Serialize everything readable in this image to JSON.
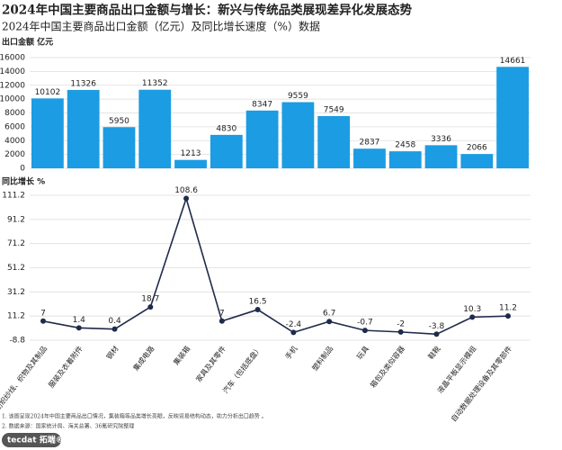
{
  "chart_data": [
    {
      "type": "bar",
      "title": "2024年中国主要商品出口金额与增长：新兴与传统品类展现差异化发展态势",
      "subtitle": "2024年中国主要商品出口金额（亿元）及同比增长速度（%）数据",
      "y_label": "出口金额  亿元",
      "color": "#1c9ce2",
      "values": [
        10102,
        11326,
        5950,
        11352,
        1213,
        4830,
        8347,
        9559,
        7549,
        2837,
        2458,
        3336,
        2066,
        14661
      ],
      "ylim": [
        0,
        16000
      ],
      "yticks": [
        0,
        2000,
        4000,
        6000,
        8000,
        10000,
        12000,
        14000,
        16000
      ],
      "grid": true
    },
    {
      "type": "line",
      "y_label": "同比增长 %",
      "color": "#1f2b4a",
      "categories": [
        "纺织纱线、织物及其制品",
        "服装及衣着附件",
        "钢材",
        "集成电路",
        "集装箱",
        "家具及其零件",
        "汽车（包括底盘）",
        "手机",
        "塑料制品",
        "玩具",
        "箱包及类似容器",
        "鞋靴",
        "液晶平板显示模组",
        "自动数据处理设备及其零部件"
      ],
      "values": [
        7,
        1.4,
        0.4,
        18.7,
        108.6,
        7,
        16.5,
        -2.4,
        6.7,
        -0.7,
        -2,
        -3.8,
        10.3,
        11.2
      ],
      "ylim": [
        -8.8,
        111.2
      ],
      "yticks": [
        -8.8,
        11.2,
        31.2,
        51.2,
        71.2,
        91.2,
        111.2
      ],
      "grid": true
    }
  ],
  "notes": [
    "1. 该图呈现2024年中国主要商品出口情况，集装箱等品类增长亮眼，反映贸易结构动态，助力分析出口趋势 。",
    "2. 数据来源：国家统计局、海关总署、36氪研究院整理"
  ],
  "brand": "tecdat 拓端®"
}
